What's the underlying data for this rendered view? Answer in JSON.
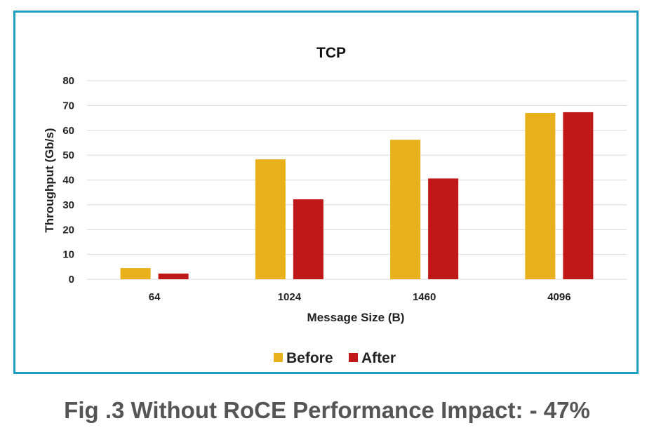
{
  "colors": {
    "frame": "#1e9ec2",
    "before": "#e8b01a",
    "after": "#c01818",
    "grid": "#d9d9d9",
    "caption": "#555555"
  },
  "caption": "Fig .3  Without RoCE Performance Impact: - 47%",
  "chart_data": {
    "type": "bar",
    "title": "TCP",
    "xlabel": "Message Size (B)",
    "ylabel": "Throughput (Gb/s)",
    "categories": [
      "64",
      "1024",
      "1460",
      "4096"
    ],
    "series": [
      {
        "name": "Before",
        "values": [
          4.5,
          48.3,
          56.2,
          67.0
        ]
      },
      {
        "name": "After",
        "values": [
          2.3,
          32.2,
          40.6,
          67.3
        ]
      }
    ],
    "ylim": [
      0,
      80
    ],
    "yticks": [
      0,
      10,
      20,
      30,
      40,
      50,
      60,
      70,
      80
    ],
    "grid": true,
    "legend": "bottom"
  }
}
